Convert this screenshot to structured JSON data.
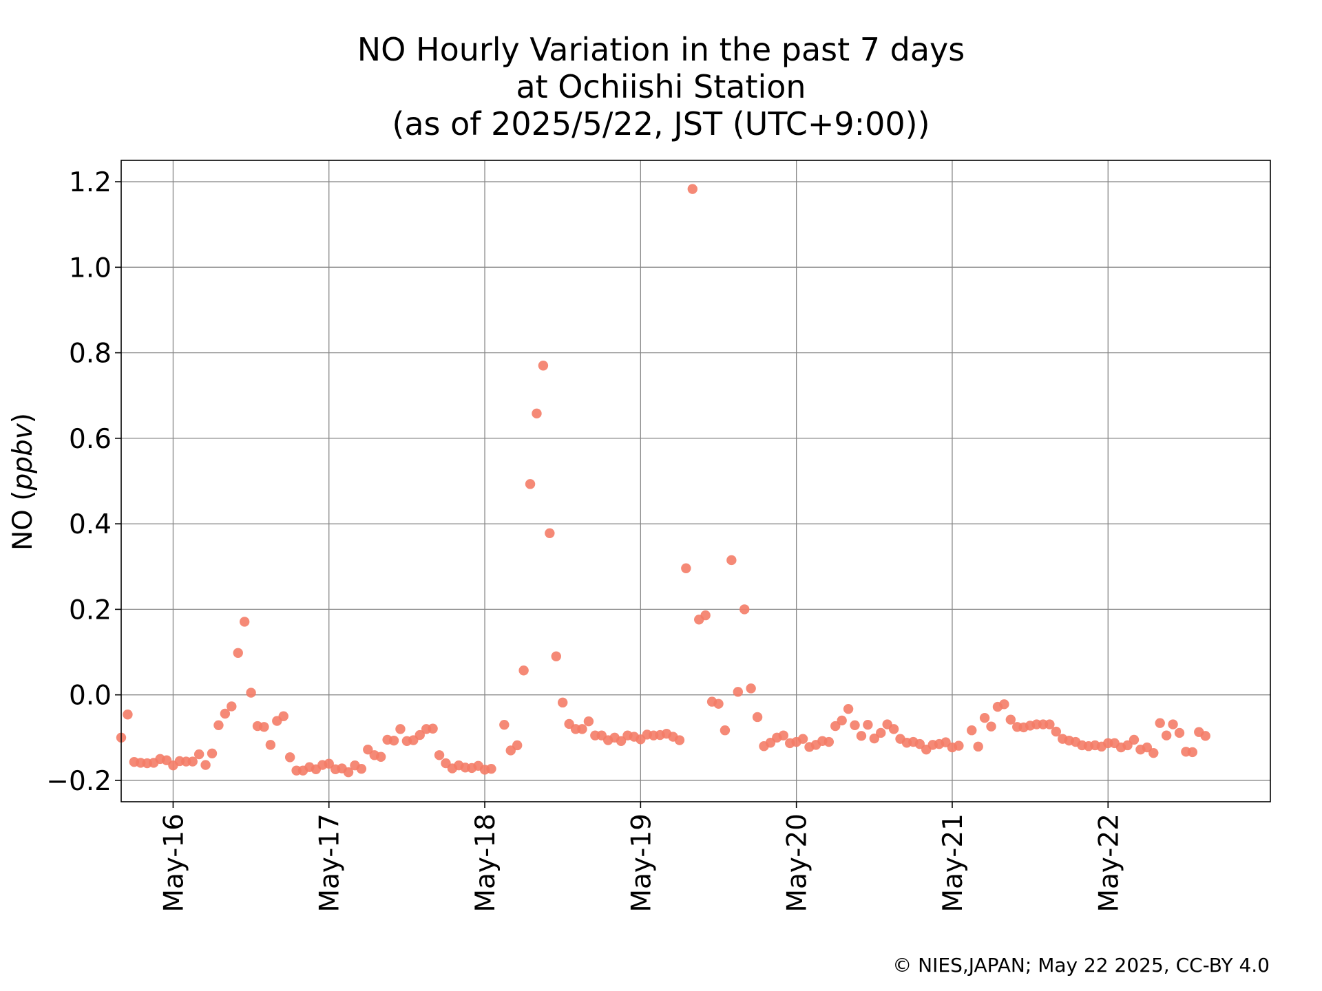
{
  "chart_data": {
    "type": "scatter",
    "title_lines": [
      "NO Hourly Variation in the past 7 days",
      "at Ochiishi Station",
      "(as of 2025/5/22, JST (UTC+9:00))"
    ],
    "ylabel_prefix": "NO (",
    "ylabel_unit": "ppbv",
    "ylabel_suffix": ")",
    "ylim": [
      -0.25,
      1.25
    ],
    "xlim": [
      "2025-05-15 16:00",
      "2025-05-23 01:00"
    ],
    "y_ticks": [
      {
        "value": -0.2,
        "label": "−0.2"
      },
      {
        "value": 0.0,
        "label": "0.0"
      },
      {
        "value": 0.2,
        "label": "0.2"
      },
      {
        "value": 0.4,
        "label": "0.4"
      },
      {
        "value": 0.6,
        "label": "0.6"
      },
      {
        "value": 0.8,
        "label": "0.8"
      },
      {
        "value": 1.0,
        "label": "1.0"
      },
      {
        "value": 1.2,
        "label": "1.2"
      }
    ],
    "x_ticks": [
      {
        "value": "2025-05-16",
        "label": "May-16"
      },
      {
        "value": "2025-05-17",
        "label": "May-17"
      },
      {
        "value": "2025-05-18",
        "label": "May-18"
      },
      {
        "value": "2025-05-19",
        "label": "May-19"
      },
      {
        "value": "2025-05-20",
        "label": "May-20"
      },
      {
        "value": "2025-05-21",
        "label": "May-21"
      },
      {
        "value": "2025-05-22",
        "label": "May-22"
      }
    ],
    "grid": true,
    "marker_color": "#f47c67",
    "start_time": "2025-05-15 16:00",
    "interval_hours": 1,
    "y": [
      -0.1,
      -0.046,
      -0.157,
      -0.159,
      -0.16,
      -0.159,
      -0.15,
      -0.153,
      -0.165,
      -0.155,
      -0.156,
      -0.156,
      -0.139,
      -0.164,
      -0.137,
      -0.071,
      -0.044,
      -0.027,
      0.098,
      0.171,
      0.005,
      -0.073,
      -0.075,
      -0.117,
      -0.061,
      -0.05,
      -0.146,
      -0.177,
      -0.177,
      -0.169,
      -0.174,
      -0.164,
      -0.161,
      -0.174,
      -0.172,
      -0.181,
      -0.165,
      -0.173,
      -0.128,
      -0.141,
      -0.145,
      -0.105,
      -0.107,
      -0.08,
      -0.108,
      -0.106,
      -0.094,
      -0.08,
      -0.079,
      -0.141,
      -0.16,
      -0.172,
      -0.165,
      -0.17,
      -0.171,
      -0.166,
      -0.175,
      -0.173,
      null,
      -0.07,
      -0.13,
      -0.118,
      0.057,
      0.493,
      0.658,
      0.77,
      0.378,
      0.09,
      -0.018,
      -0.068,
      -0.08,
      -0.08,
      -0.062,
      -0.095,
      -0.095,
      -0.106,
      -0.1,
      -0.108,
      -0.095,
      -0.098,
      -0.104,
      -0.093,
      -0.095,
      -0.094,
      -0.091,
      -0.098,
      -0.106,
      0.296,
      1.183,
      0.176,
      0.186,
      -0.016,
      -0.021,
      -0.083,
      0.315,
      0.007,
      0.2,
      0.015,
      -0.052,
      -0.12,
      -0.112,
      -0.1,
      -0.095,
      -0.113,
      -0.11,
      -0.103,
      -0.122,
      -0.117,
      -0.108,
      -0.11,
      -0.073,
      -0.06,
      -0.033,
      -0.071,
      -0.096,
      -0.07,
      -0.102,
      -0.089,
      -0.069,
      -0.08,
      -0.103,
      -0.112,
      -0.11,
      -0.115,
      -0.128,
      -0.117,
      -0.115,
      -0.111,
      -0.123,
      -0.119,
      null,
      -0.083,
      -0.121,
      -0.054,
      -0.074,
      -0.028,
      -0.022,
      -0.058,
      -0.075,
      -0.076,
      -0.072,
      -0.069,
      -0.069,
      -0.069,
      -0.086,
      -0.103,
      -0.107,
      -0.11,
      -0.118,
      -0.12,
      -0.118,
      -0.121,
      -0.113,
      -0.113,
      -0.123,
      -0.118,
      -0.105,
      -0.128,
      -0.123,
      -0.136,
      -0.066,
      -0.095,
      -0.069,
      -0.089,
      -0.133,
      -0.134,
      -0.087,
      -0.096
    ]
  },
  "credit": "© NIES,JAPAN; May 22 2025, CC-BY 4.0"
}
